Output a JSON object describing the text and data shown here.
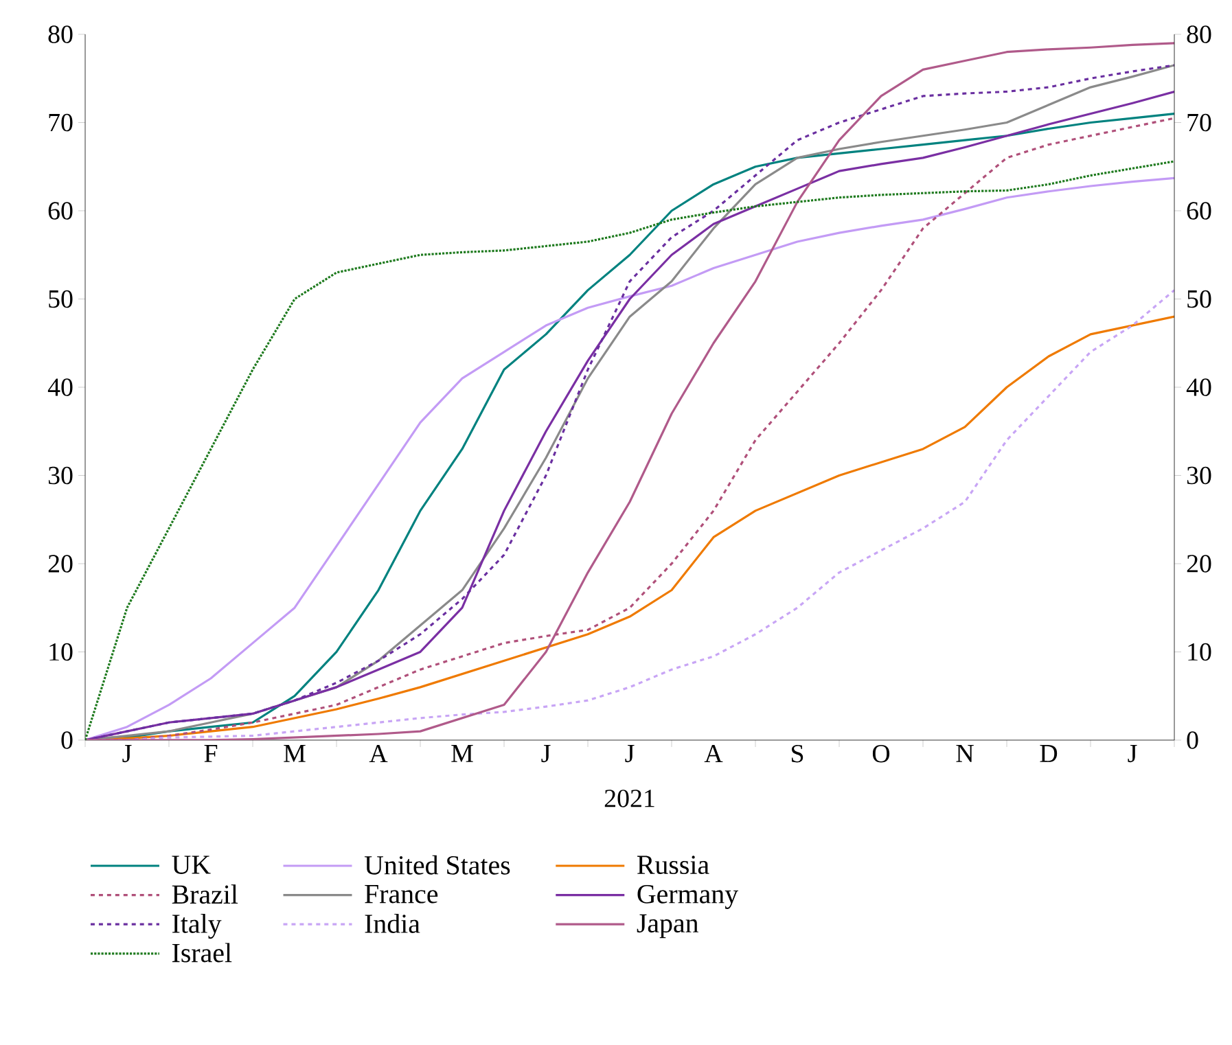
{
  "chart_data": {
    "type": "line",
    "xlabel": "2021",
    "legend": "bottom",
    "grid": false,
    "categories": [
      null,
      "J",
      null,
      "F",
      null,
      "M",
      null,
      "A",
      null,
      "M",
      null,
      "J",
      null,
      "J",
      null,
      "A",
      null,
      "S",
      null,
      "O",
      null,
      "N",
      null,
      "D",
      null,
      "J",
      null
    ],
    "ylim": [
      0,
      80
    ],
    "yticks": [
      0,
      10,
      20,
      30,
      40,
      50,
      60,
      70,
      80
    ],
    "y2lim": [
      0,
      80
    ],
    "y2ticks": [
      0,
      10,
      20,
      30,
      40,
      50,
      60,
      70,
      80
    ],
    "series": [
      {
        "name": "UK",
        "color": "#00827f",
        "line_style": "solid",
        "values": [
          0,
          0.3,
          1,
          1.5,
          2,
          5,
          10,
          17,
          26,
          33,
          42,
          46,
          51,
          55,
          60,
          63,
          65,
          66,
          66.5,
          67,
          67.5,
          68,
          68.5,
          69.3,
          70,
          70.5,
          71
        ]
      },
      {
        "name": "United States",
        "color": "#c39bf5",
        "line_style": "solid",
        "values": [
          0,
          1.5,
          4,
          7,
          11,
          15,
          22,
          29,
          36,
          41,
          44,
          47,
          49,
          50.3,
          51.5,
          53.5,
          55,
          56.5,
          57.5,
          58.3,
          59,
          60.2,
          61.5,
          62.2,
          62.8,
          63.3,
          63.7
        ]
      },
      {
        "name": "Russia",
        "color": "#ef7a00",
        "line_style": "solid",
        "values": [
          0,
          0.2,
          0.5,
          1,
          1.5,
          2.5,
          3.5,
          4.7,
          6,
          7.5,
          9,
          10.5,
          12,
          14,
          17,
          23,
          26,
          28,
          30,
          31.5,
          33,
          35.5,
          40,
          43.5,
          46,
          47,
          48
        ]
      },
      {
        "name": "Brazil",
        "color": "#b0507a",
        "line_style": "dashed",
        "values": [
          0,
          0,
          0.5,
          1.2,
          2,
          3,
          4,
          6,
          8,
          9.5,
          11,
          11.8,
          12.5,
          15,
          20,
          26,
          34,
          39.5,
          45,
          51,
          58,
          62,
          66,
          67.5,
          68.5,
          69.5,
          70.5
        ]
      },
      {
        "name": "France",
        "color": "#8a8a8a",
        "line_style": "solid",
        "values": [
          0,
          0.5,
          1,
          2,
          3,
          4.5,
          6,
          9,
          13,
          17,
          24,
          32,
          41,
          48,
          52,
          58,
          63,
          66,
          67,
          67.8,
          68.5,
          69.2,
          70,
          72,
          74,
          75.2,
          76.5
        ]
      },
      {
        "name": "Germany",
        "color": "#7a2fa3",
        "line_style": "solid",
        "values": [
          0,
          1,
          2,
          2.5,
          3,
          4.5,
          6,
          8,
          10,
          15,
          26,
          35,
          43,
          50,
          55,
          58.5,
          60.5,
          62.5,
          64.5,
          65.3,
          66,
          67.2,
          68.5,
          69.8,
          71,
          72.2,
          73.5
        ]
      },
      {
        "name": "Italy",
        "color": "#6a2fa0",
        "line_style": "dashed",
        "values": [
          0,
          1,
          2,
          2.5,
          3,
          4.5,
          6.5,
          9,
          12,
          16,
          21,
          30,
          42,
          52,
          57,
          60,
          64,
          68,
          70,
          71.5,
          73,
          73.3,
          73.5,
          74,
          75,
          75.8,
          76.5
        ]
      },
      {
        "name": "India",
        "color": "#c8a5f5",
        "line_style": "dashed",
        "values": [
          0,
          0,
          0.3,
          0.4,
          0.5,
          1,
          1.5,
          2,
          2.5,
          2.9,
          3.2,
          3.8,
          4.5,
          6,
          8,
          9.5,
          12,
          15,
          19,
          21.5,
          24,
          27,
          34,
          39,
          44,
          47,
          51
        ]
      },
      {
        "name": "Japan",
        "color": "#b05a8a",
        "line_style": "solid",
        "values": [
          0,
          0,
          0,
          0,
          0.1,
          0.3,
          0.5,
          0.7,
          1,
          2.5,
          4,
          10,
          19,
          27,
          37,
          45,
          52,
          61,
          68,
          73,
          76,
          77,
          78,
          78.3,
          78.5,
          78.8,
          79
        ]
      },
      {
        "name": "Israel",
        "color": "#1e7a1e",
        "line_style": "dotted",
        "values": [
          0,
          15,
          24,
          33,
          42,
          50,
          53,
          54,
          55,
          55.3,
          55.5,
          56,
          56.5,
          57.5,
          59,
          59.8,
          60.5,
          61,
          61.5,
          61.8,
          62,
          62.2,
          62.3,
          63,
          64,
          64.8,
          65.6
        ]
      }
    ]
  }
}
